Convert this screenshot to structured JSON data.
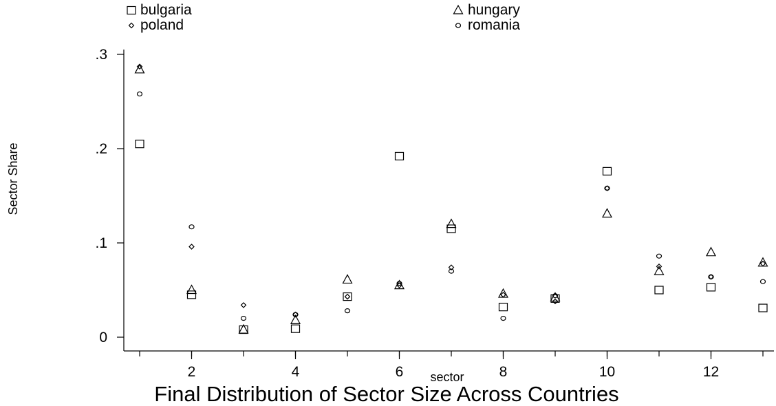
{
  "chart_data": {
    "type": "scatter",
    "title": "Final Distribution of Sector Size Across Countries",
    "xlabel": "sector",
    "ylabel": "Sector Share",
    "xlim": [
      0.75,
      13.1
    ],
    "ylim": [
      -0.015,
      0.31
    ],
    "x_ticks": [
      2,
      4,
      6,
      8,
      10,
      12
    ],
    "x_tick_labels": [
      "2",
      "4",
      "6",
      "8",
      "10",
      "12"
    ],
    "x_minor_ticks": [
      1,
      2,
      3,
      4,
      5,
      6,
      7,
      8,
      9,
      10,
      11,
      12,
      13
    ],
    "y_ticks": [
      0,
      0.1,
      0.2,
      0.3
    ],
    "y_tick_labels": [
      "0",
      ".1",
      ".2",
      ".3"
    ],
    "grid": false,
    "legend_position": "top",
    "categories": [
      1,
      2,
      3,
      4,
      5,
      6,
      7,
      8,
      9,
      10,
      11,
      12,
      13
    ],
    "series": [
      {
        "name": "bulgaria",
        "marker": "square",
        "values": [
          0.205,
          0.045,
          0.008,
          0.009,
          0.043,
          0.192,
          0.115,
          0.032,
          0.041,
          0.176,
          0.05,
          0.053,
          0.031
        ]
      },
      {
        "name": "hungary",
        "marker": "triangle",
        "values": [
          0.284,
          0.05,
          0.008,
          0.018,
          0.061,
          0.055,
          0.12,
          0.046,
          0.042,
          0.131,
          0.07,
          0.09,
          0.079
        ]
      },
      {
        "name": "poland",
        "marker": "diamond",
        "values": [
          0.287,
          0.096,
          0.034,
          0.024,
          0.043,
          0.055,
          0.074,
          0.045,
          0.038,
          0.158,
          0.075,
          0.064,
          0.078
        ]
      },
      {
        "name": "romania",
        "marker": "circle",
        "values": [
          0.258,
          0.117,
          0.02,
          0.024,
          0.028,
          0.057,
          0.07,
          0.02,
          0.044,
          0.158,
          0.086,
          0.064,
          0.059
        ]
      }
    ]
  }
}
